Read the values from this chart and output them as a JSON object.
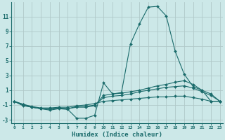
{
  "title": "",
  "xlabel": "Humidex (Indice chaleur)",
  "background_color": "#cce8e8",
  "grid_color": "#b0c8c8",
  "line_color": "#1a6b6b",
  "x": [
    0,
    1,
    2,
    3,
    4,
    5,
    6,
    7,
    8,
    9,
    10,
    11,
    12,
    13,
    14,
    15,
    16,
    17,
    18,
    19,
    20,
    21,
    22,
    23
  ],
  "series1": [
    -0.5,
    -1.1,
    -1.3,
    -1.5,
    -1.7,
    -1.5,
    -1.6,
    -2.8,
    -2.8,
    -2.4,
    2.0,
    0.5,
    0.7,
    7.3,
    10.0,
    12.3,
    12.4,
    11.1,
    6.3,
    3.2,
    1.5,
    1.0,
    -0.5,
    -0.5
  ],
  "series2": [
    -0.5,
    -0.9,
    -1.3,
    -1.5,
    -1.5,
    -1.4,
    -1.5,
    -1.3,
    -1.3,
    -1.1,
    0.3,
    0.5,
    0.6,
    0.8,
    1.0,
    1.3,
    1.6,
    1.8,
    2.1,
    2.3,
    1.8,
    1.0,
    0.5,
    -0.5
  ],
  "series3": [
    -0.5,
    -1.0,
    -1.3,
    -1.5,
    -1.6,
    -1.4,
    -1.5,
    -1.2,
    -1.2,
    -1.0,
    0.0,
    0.2,
    0.3,
    0.5,
    0.8,
    1.0,
    1.2,
    1.4,
    1.5,
    1.6,
    1.3,
    0.8,
    0.3,
    -0.5
  ],
  "series4": [
    -0.5,
    -0.9,
    -1.2,
    -1.4,
    -1.4,
    -1.3,
    -1.3,
    -1.1,
    -1.0,
    -0.8,
    -0.5,
    -0.4,
    -0.3,
    -0.2,
    -0.1,
    0.0,
    0.1,
    0.1,
    0.2,
    0.2,
    0.0,
    -0.2,
    -0.5,
    -0.5
  ],
  "xlim": [
    0,
    23
  ],
  "ylim": [
    -3.5,
    13.0
  ],
  "yticks": [
    -3,
    -1,
    1,
    3,
    5,
    7,
    9,
    11
  ],
  "xticks": [
    0,
    1,
    2,
    3,
    4,
    5,
    6,
    7,
    8,
    9,
    10,
    11,
    12,
    13,
    14,
    15,
    16,
    17,
    18,
    19,
    20,
    21,
    22,
    23
  ]
}
